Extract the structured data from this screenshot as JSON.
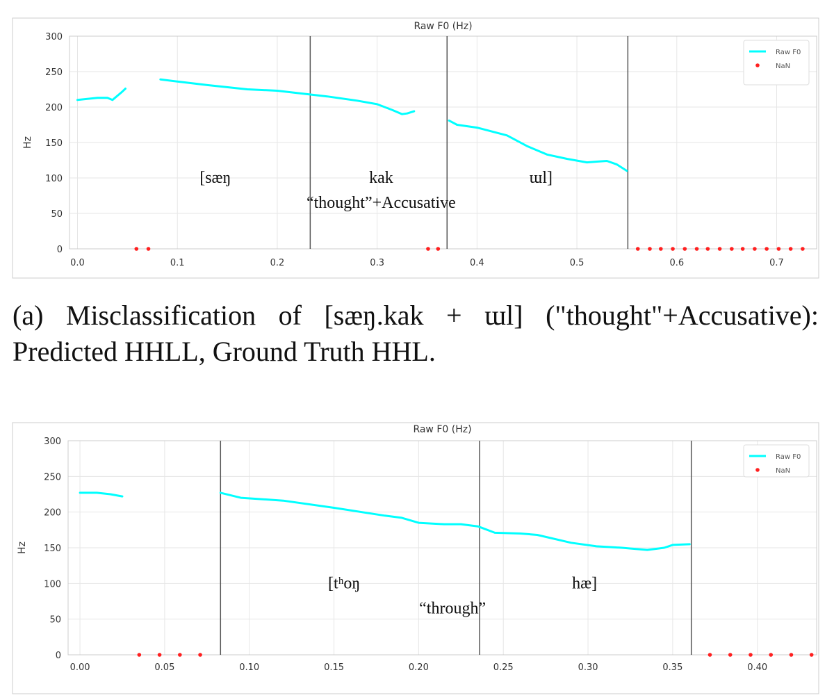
{
  "caption": "(a) Misclassification of [sæŋ.kak + ɯl] (\"thought\"+Accusative): Predicted HHLL, Ground Truth HHL.",
  "colors": {
    "line": "#00ffff",
    "nan": "#ff2020",
    "boundary": "#555555",
    "grid": "#e6e6e6",
    "frame": "#cccccc"
  },
  "chart_data": [
    {
      "type": "line",
      "title": "Raw F0 (Hz)",
      "ylabel": "Hz",
      "xlabel": "",
      "xlim": [
        -0.008,
        0.74
      ],
      "ylim": [
        0,
        300
      ],
      "xticks": [
        0.0,
        0.1,
        0.2,
        0.3,
        0.4,
        0.5,
        0.6,
        0.7
      ],
      "xtick_labels": [
        "0.0",
        "0.1",
        "0.2",
        "0.3",
        "0.4",
        "0.5",
        "0.6",
        "0.7"
      ],
      "yticks": [
        0,
        50,
        100,
        150,
        200,
        250,
        300
      ],
      "ytick_labels": [
        "0",
        "50",
        "100",
        "150",
        "200",
        "250",
        "300"
      ],
      "grid": true,
      "legend_position": "top-right",
      "series": [
        {
          "name": "Raw F0",
          "kind": "line",
          "segments": [
            [
              [
                0.0,
                210
              ],
              [
                0.02,
                213
              ],
              [
                0.03,
                213
              ],
              [
                0.035,
                210
              ],
              [
                0.045,
                222
              ],
              [
                0.048,
                226
              ]
            ],
            [
              [
                0.083,
                239
              ],
              [
                0.1,
                236
              ],
              [
                0.13,
                231
              ],
              [
                0.17,
                225
              ],
              [
                0.2,
                223
              ],
              [
                0.225,
                219
              ],
              [
                0.25,
                215
              ],
              [
                0.28,
                209
              ],
              [
                0.3,
                204
              ],
              [
                0.315,
                196
              ],
              [
                0.325,
                190
              ],
              [
                0.33,
                191
              ],
              [
                0.337,
                194
              ]
            ],
            [
              [
                0.372,
                181
              ],
              [
                0.38,
                175
              ],
              [
                0.4,
                171
              ],
              [
                0.43,
                160
              ],
              [
                0.45,
                145
              ],
              [
                0.47,
                133
              ],
              [
                0.49,
                127
              ],
              [
                0.51,
                122
              ],
              [
                0.52,
                123
              ],
              [
                0.53,
                124
              ],
              [
                0.54,
                119
              ],
              [
                0.55,
                110
              ]
            ]
          ]
        },
        {
          "name": "NaN",
          "kind": "scatter",
          "x": [
            0.059,
            0.071,
            0.351,
            0.361,
            0.561,
            0.573,
            0.584,
            0.596,
            0.608,
            0.62,
            0.631,
            0.643,
            0.655,
            0.666,
            0.678,
            0.69,
            0.702,
            0.714,
            0.726
          ],
          "y": [
            0,
            0,
            0,
            0,
            0,
            0,
            0,
            0,
            0,
            0,
            0,
            0,
            0,
            0,
            0,
            0,
            0,
            0,
            0
          ]
        }
      ],
      "boundaries": [
        0.233,
        0.37,
        0.551
      ],
      "annotations": [
        {
          "text": "[sæŋ",
          "x": 0.138,
          "y": 93
        },
        {
          "text": "kak",
          "x": 0.304,
          "y": 93
        },
        {
          "text": "ɯl]",
          "x": 0.464,
          "y": 93
        },
        {
          "text": "“thought”+Accusative",
          "x": 0.304,
          "y": 58
        }
      ]
    },
    {
      "type": "line",
      "title": "Raw F0 (Hz)",
      "ylabel": "Hz",
      "xlabel": "",
      "xlim": [
        -0.007,
        0.435
      ],
      "ylim": [
        0,
        300
      ],
      "xticks": [
        0.0,
        0.05,
        0.1,
        0.15,
        0.2,
        0.25,
        0.3,
        0.35,
        0.4
      ],
      "xtick_labels": [
        "0.00",
        "0.05",
        "0.10",
        "0.15",
        "0.20",
        "0.25",
        "0.30",
        "0.35",
        "0.40"
      ],
      "yticks": [
        0,
        50,
        100,
        150,
        200,
        250,
        300
      ],
      "ytick_labels": [
        "0",
        "50",
        "100",
        "150",
        "200",
        "250",
        "300"
      ],
      "grid": true,
      "legend_position": "top-right",
      "series": [
        {
          "name": "Raw F0",
          "kind": "line",
          "segments": [
            [
              [
                0.0,
                227
              ],
              [
                0.01,
                227
              ],
              [
                0.018,
                225
              ],
              [
                0.025,
                222
              ]
            ],
            [
              [
                0.083,
                227
              ],
              [
                0.095,
                220
              ],
              [
                0.12,
                216
              ],
              [
                0.15,
                206
              ],
              [
                0.18,
                195
              ],
              [
                0.19,
                192
              ],
              [
                0.2,
                185
              ],
              [
                0.215,
                183
              ],
              [
                0.225,
                183
              ],
              [
                0.235,
                180
              ],
              [
                0.245,
                171
              ],
              [
                0.26,
                170
              ],
              [
                0.27,
                168
              ],
              [
                0.29,
                157
              ],
              [
                0.305,
                152
              ],
              [
                0.32,
                150
              ],
              [
                0.335,
                147
              ],
              [
                0.345,
                150
              ],
              [
                0.35,
                154
              ],
              [
                0.36,
                155
              ]
            ]
          ]
        },
        {
          "name": "NaN",
          "kind": "scatter",
          "x": [
            0.035,
            0.047,
            0.059,
            0.071,
            0.372,
            0.384,
            0.396,
            0.408,
            0.42,
            0.432
          ],
          "y": [
            0,
            0,
            0,
            0,
            0,
            0,
            0,
            0,
            0,
            0
          ]
        }
      ],
      "boundaries": [
        0.083,
        0.236,
        0.361
      ],
      "annotations": [
        {
          "text": "[tʰoŋ",
          "x": 0.156,
          "y": 93
        },
        {
          "text": "hæ]",
          "x": 0.298,
          "y": 93
        },
        {
          "text": "“through”",
          "x": 0.22,
          "y": 58
        }
      ]
    }
  ]
}
